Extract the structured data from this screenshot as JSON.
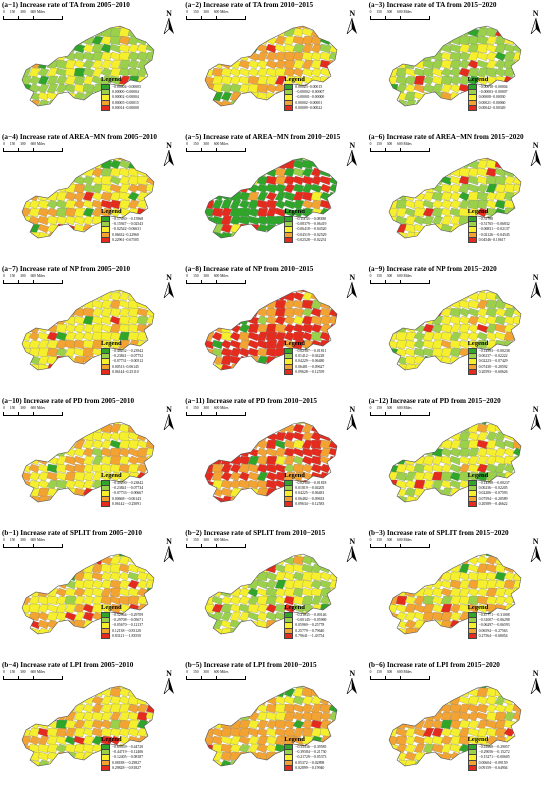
{
  "legend_title": "Legend",
  "north_label": "N",
  "scale_labels": [
    "0",
    "150",
    "300",
    "600 Miles"
  ],
  "colors": {
    "dark_green": "#2fa52a",
    "light_green": "#9bd14a",
    "yellow": "#f5ef2e",
    "orange": "#f3a332",
    "red": "#e42b1e",
    "boundary": "#7a7a7a"
  },
  "panels": [
    {
      "title": "(a−1) Increase rate of TA from 2005−2010",
      "legend": [
        "−0.00004−0.00005",
        "0.00000−0.00004",
        "0.00002−0.00004",
        "0.00005−0.00015",
        "0.00014−0.00000"
      ],
      "dominant": "light_green",
      "secondary": "yellow"
    },
    {
      "title": "(a−2) Increase rate of TA from 2010−2015",
      "legend": [
        "0.00023−0.00015",
        "−0.00002−0.00007",
        "−0.00001−0.00000",
        "0.00002−0.00001",
        "0.00009−0.00022"
      ],
      "dominant": "yellow",
      "secondary": "orange"
    },
    {
      "title": "(a−3) Increase rate of TA from 2015−2020",
      "legend": [
        "−0.00018−0.00004",
        "−0.00003−0.00007",
        "0.00008−0.00030",
        "0.00021−0.00060",
        "0.00042−0.00349"
      ],
      "dominant": "light_green",
      "secondary": "yellow"
    },
    {
      "title": "(a−4) Increase rate of AREA−MN from 2005−2010",
      "legend": [
        "−0.17430−−0.15968",
        "−0.15947−−0.02543",
        "−0.02542−0.06631",
        "0.06632−0.22960",
        "0.22961−0.67505"
      ],
      "dominant": "yellow",
      "secondary": "orange"
    },
    {
      "title": "(a−5) Increase rate of AREA−MN from 2010−2015",
      "legend": [
        "−0.11133−−0.08380",
        "−0.08379−−0.06419",
        "−0.06418−−0.04520",
        "−0.04519−−0.02529",
        "−0.02528−−0.02231"
      ],
      "dominant": "dark_green",
      "secondary": "red"
    },
    {
      "title": "(a−6) Increase rate of AREA−MN from 2015−2020",
      "legend": [
        "−0.51788",
        "−0.51765−−0.06832",
        "−0.06831−−0.02137",
        "−0.02126−−0.04545",
        "0.04546−0.10617"
      ],
      "dominant": "yellow",
      "secondary": "light_green"
    },
    {
      "title": "(a−7) Increase rate of NP from 2005−2010",
      "legend": [
        "−0.40252−−0.23942",
        "−0.23841−−0.07752",
        "−0.07731−−0.00512",
        "0.00513−0.06145",
        "0.06144−0.25110"
      ],
      "dominant": "yellow",
      "secondary": "orange"
    },
    {
      "title": "(a−8) Increase rate of NP from 2010−2015",
      "legend": [
        "−0.02187−−0.01811",
        "0.01412−−0.04228",
        "0.04229−−0.06480",
        "0.06481−−0.09627",
        "0.09628−−0.12559"
      ],
      "dominant": "red",
      "secondary": "orange"
    },
    {
      "title": "(a−9) Increase rate of NP from 2015−2020",
      "legend": [
        "−0.14593−−0.00238",
        "0.00237−−0.02222",
        "0.02223−−0.07429",
        "0.07430−−0.20592",
        "0.20593−−0.60626"
      ],
      "dominant": "yellow",
      "secondary": "light_green"
    },
    {
      "title": "(a−10) Increase rate of PD from 2005−2010",
      "legend": [
        "−0.40290−−0.23842",
        "−0.23841−−0.07734",
        "−0.07733−−0.00667",
        "0.00668−−0.06143",
        "0.06142−−0.25091"
      ],
      "dominant": "yellow",
      "secondary": "orange"
    },
    {
      "title": "(a−11) Increase rate of PD from 2010−2015",
      "legend": [
        "−0.02180−−0.01818",
        "0.01819−−0.04205",
        "0.04225−−0.06481",
        "0.06482−−0.09633",
        "0.09634−−0.12583"
      ],
      "dominant": "red",
      "secondary": "orange"
    },
    {
      "title": "(a−12) Increase rate of PD from 2015−2020",
      "legend": [
        "−0.14598−−0.00237",
        "0.00236−−0.02205",
        "0.02206−−0.07593",
        "0.07594−−0.20589",
        "0.20589−−0.46622"
      ],
      "dominant": "yellow",
      "secondary": "light_green"
    },
    {
      "title": "(b−1) Increase rate of SPLIT from 2005−2010",
      "legend": [
        "−0.52964−−0.29709",
        "−0.29708−−0.05671",
        "−0.05670−−0.12137",
        "0.12138−−0.83120",
        "0.83121−−1.83550"
      ],
      "dominant": "yellow",
      "secondary": "orange"
    },
    {
      "title": "(b−2) Increase rate of SPLIT from 2010−2015",
      "legend": [
        "−0.21835−−0.00146",
        "−0.00145−−0.05969",
        "0.05969−−0.25778",
        "0.25779−−0.79640",
        "0.79641−−1.43754"
      ],
      "dominant": "yellow",
      "secondary": "light_green"
    },
    {
      "title": "(b−3) Increase rate of SPLIT from 2015−2020",
      "legend": [
        "−0.47771−−0.31008",
        "−0.31007−−0.06298",
        "−0.06297−−0.06593",
        "0.06594−−0.27563",
        "0.27564−−0.68054"
      ],
      "dominant": "yellow",
      "secondary": "orange"
    },
    {
      "title": "(b−4) Increase rate of LPI from 2005−2010",
      "legend": [
        "−0.69539−−0.44720",
        "−0.44719−−0.12406",
        "−0.12405−−0.08187",
        "0.08188−−0.29827",
        "0.29828−−0.81827"
      ],
      "dominant": "yellow",
      "secondary": "orange"
    },
    {
      "title": "(b−5) Increase rate of LPI from 2010−2015",
      "legend": [
        "−0.55536−−0.39585",
        "−0.39584−−0.21730",
        "−0.21729−−0.05373",
        "0.05372−−0.02898",
        "0.02899−−0.19940"
      ],
      "dominant": "orange",
      "secondary": "yellow"
    },
    {
      "title": "(b−6) Increase rate of LPI from 2015−2020",
      "legend": [
        "−0.41668−−0.29057",
        "−0.29056−−0.15272",
        "−0.15271−−0.00605",
        "0.00604−−0.09159",
        "0.09159−−0.64904"
      ],
      "dominant": "yellow",
      "secondary": "orange"
    }
  ]
}
